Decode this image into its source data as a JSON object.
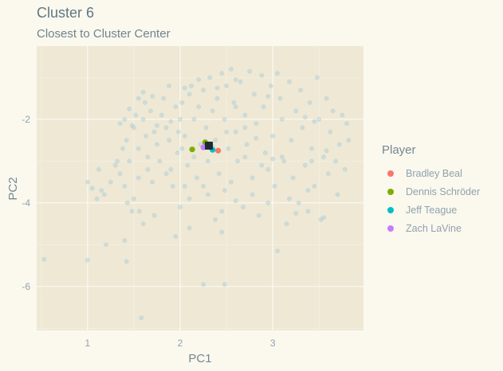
{
  "chart_data": {
    "type": "scatter",
    "title": "Cluster 6",
    "subtitle": "Closest to Cluster Center",
    "xlabel": "PC1",
    "ylabel": "PC2",
    "xlim": [
      0.45,
      3.98
    ],
    "ylim": [
      -7.05,
      -0.25
    ],
    "x_ticks": [
      1,
      2,
      3
    ],
    "y_ticks": [
      -2,
      -4,
      -6
    ],
    "x_tick_labels": [
      "1",
      "2",
      "3"
    ],
    "y_tick_labels": [
      "-2",
      "-4",
      "-6"
    ],
    "grid": true,
    "legend_position": "right",
    "legend_title": "Player",
    "background_points": [
      [
        0.53,
        -5.35
      ],
      [
        1.0,
        -5.37
      ],
      [
        1.0,
        -3.5
      ],
      [
        1.05,
        -3.65
      ],
      [
        1.1,
        -3.9
      ],
      [
        1.12,
        -3.2
      ],
      [
        1.15,
        -3.7
      ],
      [
        1.18,
        -3.8
      ],
      [
        1.2,
        -5.0
      ],
      [
        1.25,
        -3.5
      ],
      [
        1.3,
        -3.1
      ],
      [
        1.32,
        -3.0
      ],
      [
        1.35,
        -3.3
      ],
      [
        1.38,
        -2.7
      ],
      [
        1.4,
        -3.6
      ],
      [
        1.42,
        -2.5
      ],
      [
        1.35,
        -2.1
      ],
      [
        1.4,
        -2.0
      ],
      [
        1.43,
        -4.0
      ],
      [
        1.45,
        -3.0
      ],
      [
        1.4,
        -4.9
      ],
      [
        1.42,
        -5.4
      ],
      [
        1.48,
        -4.2
      ],
      [
        1.5,
        -3.9
      ],
      [
        1.5,
        -2.2
      ],
      [
        1.52,
        -1.9
      ],
      [
        1.55,
        -2.7
      ],
      [
        1.55,
        -3.4
      ],
      [
        1.56,
        -4.2
      ],
      [
        1.58,
        -6.75
      ],
      [
        1.6,
        -2.0
      ],
      [
        1.62,
        -1.6
      ],
      [
        1.63,
        -2.4
      ],
      [
        1.65,
        -2.9
      ],
      [
        1.68,
        -1.8
      ],
      [
        1.7,
        -3.5
      ],
      [
        1.72,
        -2.3
      ],
      [
        1.75,
        -2.6
      ],
      [
        1.78,
        -3.0
      ],
      [
        1.8,
        -1.9
      ],
      [
        1.82,
        -1.5
      ],
      [
        1.85,
        -2.2
      ],
      [
        1.88,
        -2.5
      ],
      [
        1.9,
        -3.2
      ],
      [
        1.92,
        -3.6
      ],
      [
        1.95,
        -1.7
      ],
      [
        1.97,
        -2.8
      ],
      [
        2.0,
        -2.0
      ],
      [
        2.02,
        -1.6
      ],
      [
        2.05,
        -2.4
      ],
      [
        2.08,
        -3.1
      ],
      [
        2.1,
        -1.4
      ],
      [
        2.1,
        -3.9
      ],
      [
        2.12,
        -1.2
      ],
      [
        2.15,
        -2.0
      ],
      [
        2.18,
        -3.4
      ],
      [
        2.2,
        -1.7
      ],
      [
        2.22,
        -2.6
      ],
      [
        2.25,
        -1.3
      ],
      [
        2.28,
        -2.2
      ],
      [
        2.3,
        -3.0
      ],
      [
        2.3,
        -3.8
      ],
      [
        2.32,
        -1.0
      ],
      [
        2.35,
        -1.8
      ],
      [
        2.38,
        -2.5
      ],
      [
        2.4,
        -1.5
      ],
      [
        2.42,
        -3.3
      ],
      [
        2.45,
        -0.9
      ],
      [
        2.45,
        -4.2
      ],
      [
        2.48,
        -2.0
      ],
      [
        2.5,
        -1.2
      ],
      [
        2.52,
        -2.7
      ],
      [
        2.55,
        -0.8
      ],
      [
        2.55,
        -3.5
      ],
      [
        2.58,
        -1.6
      ],
      [
        2.6,
        -2.3
      ],
      [
        2.62,
        -3.0
      ],
      [
        2.65,
        -1.1
      ],
      [
        2.68,
        -4.1
      ],
      [
        2.7,
        -1.9
      ],
      [
        2.72,
        -2.6
      ],
      [
        2.75,
        -0.85
      ],
      [
        2.78,
        -3.4
      ],
      [
        2.8,
        -1.4
      ],
      [
        2.82,
        -2.1
      ],
      [
        2.85,
        -4.3
      ],
      [
        2.88,
        -0.95
      ],
      [
        2.9,
        -1.7
      ],
      [
        2.92,
        -2.8
      ],
      [
        2.95,
        -3.2
      ],
      [
        2.98,
        -1.2
      ],
      [
        3.0,
        -2.4
      ],
      [
        3.02,
        -3.6
      ],
      [
        3.05,
        -0.9
      ],
      [
        3.08,
        -1.5
      ],
      [
        3.1,
        -2.0
      ],
      [
        3.12,
        -3.0
      ],
      [
        3.15,
        -4.5
      ],
      [
        3.18,
        -1.1
      ],
      [
        3.2,
        -2.5
      ],
      [
        3.22,
        -3.4
      ],
      [
        3.25,
        -1.8
      ],
      [
        3.28,
        -4.0
      ],
      [
        3.3,
        -1.3
      ],
      [
        3.32,
        -2.2
      ],
      [
        3.35,
        -3.1
      ],
      [
        3.38,
        -4.2
      ],
      [
        3.4,
        -1.6
      ],
      [
        3.42,
        -2.7
      ],
      [
        3.45,
        -3.6
      ],
      [
        3.48,
        -1.0
      ],
      [
        3.5,
        -2.0
      ],
      [
        3.52,
        -4.4
      ],
      [
        3.55,
        -2.9
      ],
      [
        3.58,
        -1.5
      ],
      [
        3.6,
        -3.3
      ],
      [
        3.62,
        -2.3
      ],
      [
        3.65,
        -1.8
      ],
      [
        3.68,
        -3.0
      ],
      [
        3.7,
        -3.8
      ],
      [
        3.72,
        -2.6
      ],
      [
        3.75,
        -1.9
      ],
      [
        3.78,
        -3.2
      ],
      [
        3.8,
        -2.1
      ],
      [
        3.82,
        -2.5
      ],
      [
        3.55,
        -4.35
      ],
      [
        3.45,
        -2.05
      ],
      [
        3.35,
        -1.95
      ],
      [
        3.58,
        -2.75
      ],
      [
        3.1,
        -2.9
      ],
      [
        3.0,
        -2.95
      ],
      [
        2.95,
        -1.45
      ],
      [
        2.6,
        -1.05
      ],
      [
        2.4,
        -1.25
      ],
      [
        2.2,
        -1.05
      ],
      [
        2.05,
        -1.25
      ],
      [
        1.9,
        -2.05
      ],
      [
        1.75,
        -2.15
      ],
      [
        1.7,
        -1.45
      ],
      [
        1.6,
        -1.35
      ],
      [
        1.55,
        -1.5
      ],
      [
        1.45,
        -1.75
      ],
      [
        1.48,
        -2.15
      ],
      [
        1.65,
        -3.2
      ],
      [
        1.85,
        -3.3
      ],
      [
        2.05,
        -3.6
      ],
      [
        2.25,
        -3.6
      ],
      [
        2.48,
        -3.7
      ],
      [
        2.6,
        -3.95
      ],
      [
        2.78,
        -3.8
      ],
      [
        2.95,
        -4.0
      ],
      [
        3.18,
        -3.9
      ],
      [
        3.25,
        -4.25
      ],
      [
        3.38,
        -3.7
      ],
      [
        2.25,
        -5.95
      ],
      [
        2.48,
        -5.95
      ],
      [
        2.38,
        -4.4
      ],
      [
        2.45,
        -4.7
      ],
      [
        2.1,
        -4.6
      ],
      [
        2.0,
        -4.1
      ],
      [
        1.72,
        -4.3
      ],
      [
        1.6,
        -4.5
      ],
      [
        1.95,
        -4.8
      ],
      [
        3.05,
        -5.15
      ],
      [
        2.15,
        -2.9
      ],
      [
        2.35,
        -2.65
      ],
      [
        2.5,
        -2.3
      ],
      [
        2.6,
        -1.7
      ],
      [
        2.7,
        -2.2
      ],
      [
        2.82,
        -2.45
      ],
      [
        2.88,
        -3.1
      ],
      [
        1.98,
        -2.3
      ],
      [
        1.88,
        -1.2
      ],
      [
        2.02,
        -2.7
      ],
      [
        2.7,
        -2.9
      ],
      [
        3.42,
        -3.0
      ]
    ],
    "series": [
      {
        "name": "Bradley Beal",
        "color": "#f8766d",
        "points": [
          [
            2.41,
            -2.75
          ]
        ]
      },
      {
        "name": "Dennis Schröder",
        "color": "#7cae00",
        "points": [
          [
            2.27,
            -2.55
          ],
          [
            2.13,
            -2.72
          ]
        ]
      },
      {
        "name": "Jeff Teague",
        "color": "#00bfc4",
        "points": [
          [
            2.35,
            -2.73
          ]
        ]
      },
      {
        "name": "Zach LaVine",
        "color": "#c77cff",
        "points": [
          [
            2.25,
            -2.67
          ]
        ]
      }
    ],
    "centroid": {
      "x": 2.31,
      "y": -2.63
    }
  }
}
